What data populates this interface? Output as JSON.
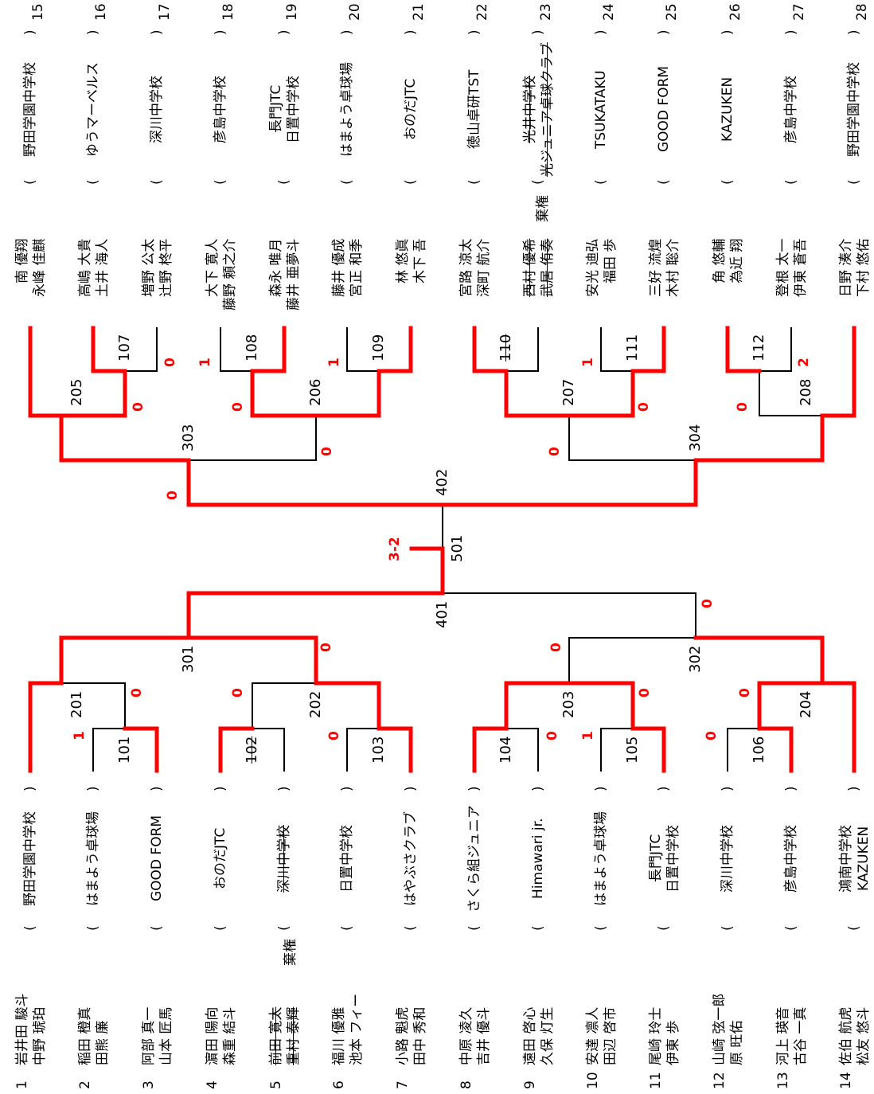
{
  "colors": {
    "winner_line": "#ff0000",
    "line": "#000000",
    "score": "#ff0000"
  },
  "entries_left": [
    {
      "seed": "1",
      "players": [
        "岩井田 駿斗",
        "中野 琥珀"
      ],
      "team": "野田学園中学校"
    },
    {
      "seed": "2",
      "players": [
        "稲田 橙真",
        "田熊 廉"
      ],
      "team": "はまよう卓球場"
    },
    {
      "seed": "3",
      "players": [
        "阿部 真一",
        "山本 匠馬"
      ],
      "team": "GOOD FORM"
    },
    {
      "seed": "4",
      "players": [
        "濵田 陽向",
        "森重 結斗"
      ],
      "team": "おのだJTC"
    },
    {
      "seed": "5",
      "players": [
        "前田 寛太",
        "重村 泰輝"
      ],
      "team": "深川中学校",
      "note": "棄権",
      "strike": true
    },
    {
      "seed": "6",
      "players": [
        "福川 優雅",
        "池本 フィー"
      ],
      "team": "日置中学校"
    },
    {
      "seed": "7",
      "players": [
        "小路 魁虎",
        "田中 秀和"
      ],
      "team": "はやぶさクラブ"
    },
    {
      "seed": "8",
      "players": [
        "中原 凌久",
        "吉井 優斗"
      ],
      "team": "さくら組ジュニア"
    },
    {
      "seed": "9",
      "players": [
        "遠田 啓心",
        "久保 灯生"
      ],
      "team": "Himawari jr."
    },
    {
      "seed": "10",
      "players": [
        "安達 凛人",
        "田辺 啓市"
      ],
      "team": "はまよう卓球場"
    },
    {
      "seed": "11",
      "players": [
        "尾崎 玲士",
        "伊東 歩"
      ],
      "team": "長門JTC　日置中学校"
    },
    {
      "seed": "12",
      "players": [
        "山崎 弦一郎",
        "原 旺佑"
      ],
      "team": "深川中学校"
    },
    {
      "seed": "13",
      "players": [
        "河上 瑛音",
        "古谷 一真"
      ],
      "team": "彦島中学校"
    },
    {
      "seed": "14",
      "players": [
        "佐伯 航虎",
        "松友 悠斗"
      ],
      "team": "鴻南中学校　KAZUKEN"
    }
  ],
  "entries_right": [
    {
      "seed": "15",
      "players": [
        "南 優翔",
        "永峰 佳麒"
      ],
      "team": "野田学園中学校"
    },
    {
      "seed": "16",
      "players": [
        "高嶋 大貴",
        "土井 海人"
      ],
      "team": "ゆうマーベルス"
    },
    {
      "seed": "17",
      "players": [
        "増野 公太",
        "辻野 柊平"
      ],
      "team": "深川中学校"
    },
    {
      "seed": "18",
      "players": [
        "大下 寛人",
        "藤野 頼之介"
      ],
      "team": "彦島中学校"
    },
    {
      "seed": "19",
      "players": [
        "森永 唯月",
        "藤井 亜夢斗"
      ],
      "team": "長門JTC　日置中学校"
    },
    {
      "seed": "20",
      "players": [
        "藤井 優成",
        "宮正 和季"
      ],
      "team": "はまよう卓球場"
    },
    {
      "seed": "21",
      "players": [
        "林 悠眞",
        "木下 吾"
      ],
      "team": "おのだJTC"
    },
    {
      "seed": "22",
      "players": [
        "宮路 涼太",
        "深町 航介"
      ],
      "team": "徳山卓研TST"
    },
    {
      "seed": "23",
      "players": [
        "西村 優希",
        "武居 侑奏"
      ],
      "team": "光井中学校　光ジュニア卓球クラブ",
      "note": "棄権",
      "strike": true
    },
    {
      "seed": "24",
      "players": [
        "安光 迪弘",
        "福田 歩"
      ],
      "team": "TSUKATAKU"
    },
    {
      "seed": "25",
      "players": [
        "三好 流煌",
        "木村 聡介"
      ],
      "team": "GOOD FORM"
    },
    {
      "seed": "26",
      "players": [
        "角 悠輔",
        "為近 翔"
      ],
      "team": "KAZUKEN"
    },
    {
      "seed": "27",
      "players": [
        "登根 太一",
        "伊東 蒼吾"
      ],
      "team": "彦島中学校"
    },
    {
      "seed": "28",
      "players": [
        "日野 湊介",
        "下村 悠佑"
      ],
      "team": "野田学園中学校"
    }
  ],
  "matches": [
    {
      "id": "101"
    },
    {
      "id": "102",
      "strike": true
    },
    {
      "id": "103"
    },
    {
      "id": "104"
    },
    {
      "id": "105"
    },
    {
      "id": "106"
    },
    {
      "id": "107"
    },
    {
      "id": "108"
    },
    {
      "id": "109"
    },
    {
      "id": "110",
      "strike": true
    },
    {
      "id": "111"
    },
    {
      "id": "112"
    },
    {
      "id": "201"
    },
    {
      "id": "202"
    },
    {
      "id": "203"
    },
    {
      "id": "204"
    },
    {
      "id": "205"
    },
    {
      "id": "206"
    },
    {
      "id": "207"
    },
    {
      "id": "208"
    },
    {
      "id": "301"
    },
    {
      "id": "302"
    },
    {
      "id": "303"
    },
    {
      "id": "304"
    },
    {
      "id": "401"
    },
    {
      "id": "402"
    },
    {
      "id": "501"
    }
  ],
  "scores": [
    "1",
    "0",
    "0",
    "0",
    "0",
    "0",
    "1",
    "0",
    "0",
    "0",
    "0",
    "0",
    "0",
    "1",
    "0",
    "0",
    "0",
    "0",
    "1",
    "1",
    "0",
    "0",
    "0",
    "2",
    "0",
    "0",
    "0",
    "0",
    "3-2"
  ]
}
